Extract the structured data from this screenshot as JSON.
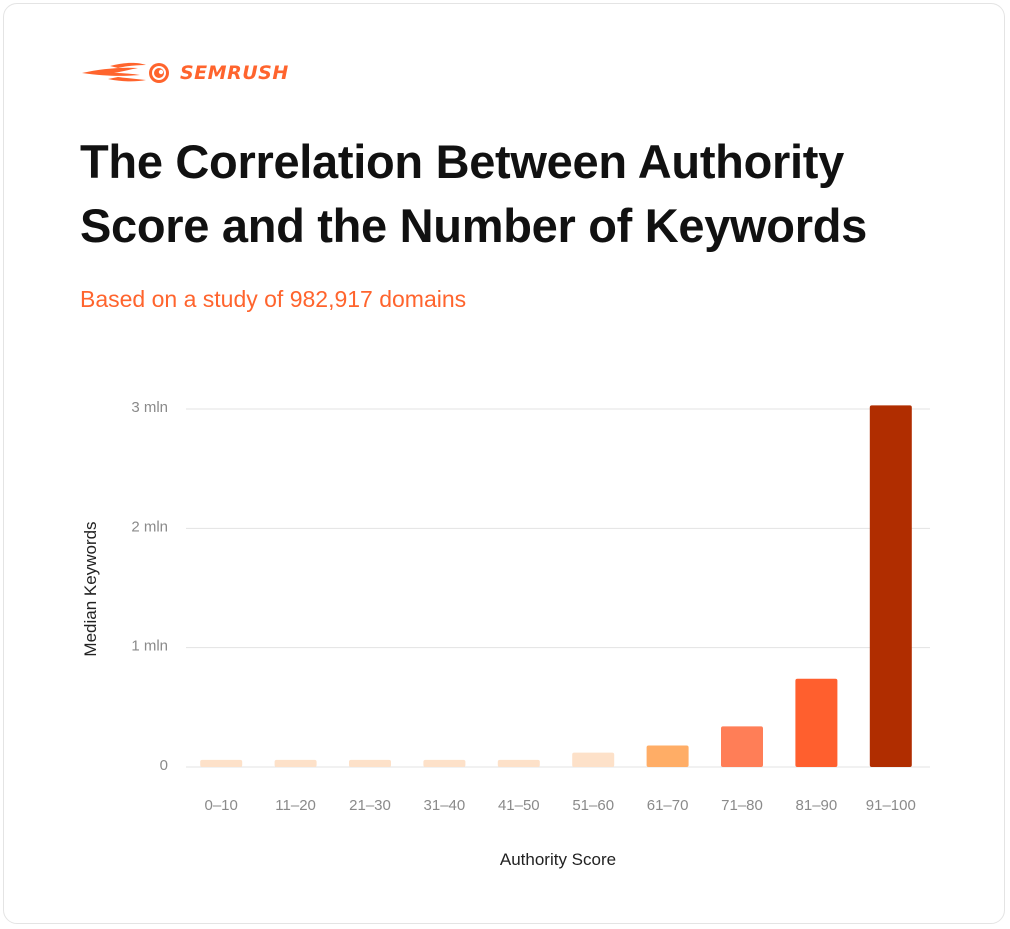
{
  "brand": {
    "name": "SEMRUSH",
    "color": "#ff642d"
  },
  "title_line1": "The Correlation Between Authority",
  "title_line2": "Score and the Number of Keywords",
  "subtitle": "Based on a study of 982,917 domains",
  "chart_data": {
    "type": "bar",
    "categories": [
      "0–10",
      "11–20",
      "21–30",
      "31–40",
      "41–50",
      "51–60",
      "61–70",
      "71–80",
      "81–90",
      "91–100"
    ],
    "values": [
      60000,
      60000,
      60000,
      60000,
      60000,
      120000,
      180000,
      340000,
      740000,
      3030000
    ],
    "colors": [
      "#fde1c9",
      "#fde1c9",
      "#fde1c9",
      "#fde1c9",
      "#fde1c9",
      "#fde1c9",
      "#ffad66",
      "#ff7e57",
      "#ff5f2e",
      "#b02d00"
    ],
    "xlabel": "Authority Score",
    "ylabel": "Median Keywords",
    "ylim": [
      0,
      3000000
    ],
    "yticks": [
      {
        "value": 0,
        "label": "0"
      },
      {
        "value": 1000000,
        "label": "1 mln"
      },
      {
        "value": 2000000,
        "label": "2 mln"
      },
      {
        "value": 3000000,
        "label": "3 mln"
      }
    ],
    "grid": true,
    "legend": "none"
  }
}
